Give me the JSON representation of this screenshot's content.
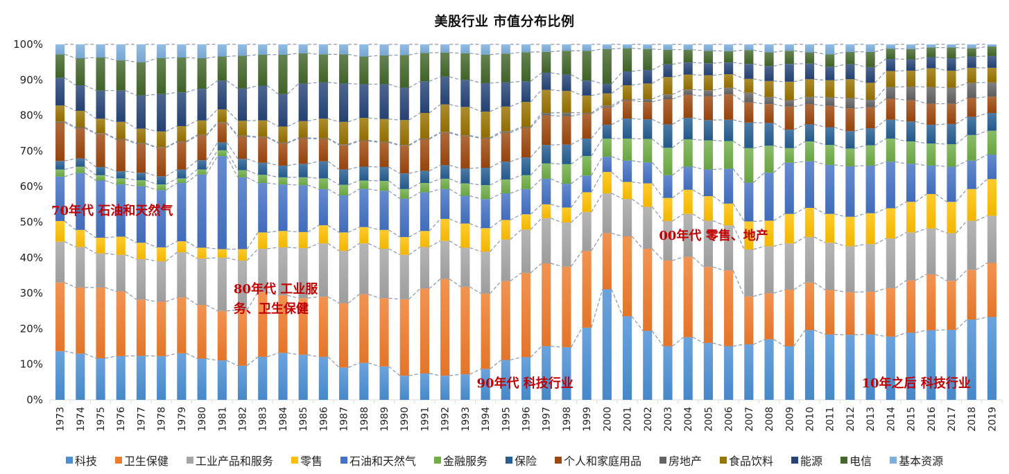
{
  "chart_data": {
    "type": "bar",
    "stacked": true,
    "percent": true,
    "title": "美股行业 市值分布比例",
    "xlabel": "",
    "ylabel": "",
    "ylim": [
      0,
      100
    ],
    "yticks": [
      "0%",
      "10%",
      "20%",
      "30%",
      "40%",
      "50%",
      "60%",
      "70%",
      "80%",
      "90%",
      "100%"
    ],
    "legend_position": "bottom",
    "categories": [
      "1973",
      "1974",
      "1975",
      "1976",
      "1977",
      "1978",
      "1979",
      "1980",
      "1981",
      "1982",
      "1983",
      "1984",
      "1985",
      "1986",
      "1987",
      "1988",
      "1989",
      "1990",
      "1991",
      "1992",
      "1993",
      "1994",
      "1995",
      "1996",
      "1997",
      "1998",
      "1999",
      "2000",
      "2001",
      "2002",
      "2003",
      "2004",
      "2005",
      "2006",
      "2007",
      "2008",
      "2009",
      "2010",
      "2011",
      "2012",
      "2013",
      "2014",
      "2015",
      "2016",
      "2017",
      "2018",
      "2019"
    ],
    "series": [
      {
        "name": "科技",
        "color": "#4a8fd4",
        "values": [
          13.7,
          13.0,
          11.7,
          12.3,
          12.4,
          12.3,
          13.1,
          11.6,
          11.1,
          9.6,
          12.1,
          13.2,
          12.7,
          12.1,
          9.1,
          10.4,
          9.4,
          6.8,
          7.4,
          6.8,
          7.2,
          8.7,
          11.2,
          12.0,
          15.1,
          14.8,
          20.3,
          31.1,
          23.5,
          19.4,
          15.1,
          17.6,
          16.0,
          15.1,
          15.6,
          17.0,
          15.1,
          19.6,
          18.4,
          18.3,
          18.4,
          17.8,
          18.9,
          19.6,
          19.7,
          22.6,
          23.3
        ]
      },
      {
        "name": "卫生保健",
        "color": "#ef7b2b",
        "values": [
          19.3,
          18.6,
          19.9,
          18.2,
          15.8,
          15.3,
          15.7,
          15.1,
          13.9,
          15.7,
          18.2,
          16.2,
          15.9,
          16.9,
          18.1,
          19.3,
          19.2,
          21.5,
          23.9,
          27.2,
          24.6,
          21.2,
          22.2,
          23.7,
          23.3,
          22.7,
          21.6,
          15.8,
          22.5,
          23.1,
          24.1,
          22.6,
          21.4,
          21.3,
          13.5,
          13.0,
          15.9,
          13.4,
          12.5,
          12.0,
          12.0,
          13.6,
          14.7,
          15.7,
          13.8,
          14.0,
          15.2
        ]
      },
      {
        "name": "工业产品和服务",
        "color": "#a5a5a5",
        "values": [
          11.5,
          11.4,
          9.6,
          10.3,
          11.4,
          11.4,
          12.7,
          13.1,
          15.0,
          13.9,
          12.2,
          13.5,
          14.1,
          15.0,
          14.7,
          14.3,
          13.9,
          12.5,
          11.7,
          10.7,
          11.0,
          11.8,
          11.7,
          12.2,
          12.7,
          12.4,
          10.9,
          11.2,
          10.5,
          11.8,
          11.1,
          12.1,
          13.0,
          12.7,
          13.2,
          13.2,
          13.0,
          12.8,
          13.3,
          12.9,
          13.4,
          14.0,
          13.5,
          12.9,
          13.4,
          13.8,
          13.3
        ]
      },
      {
        "name": "零售",
        "color": "#ffc000",
        "values": [
          5.8,
          4.8,
          4.4,
          5.1,
          4.6,
          3.9,
          3.1,
          3.0,
          2.4,
          3.2,
          4.6,
          4.6,
          4.5,
          5.1,
          5.2,
          4.6,
          5.3,
          5.0,
          4.5,
          6.2,
          6.8,
          6.6,
          5.5,
          4.3,
          3.9,
          4.2,
          5.6,
          6.0,
          4.8,
          6.6,
          6.5,
          6.8,
          6.9,
          6.1,
          7.9,
          7.2,
          8.3,
          8.2,
          8.1,
          8.3,
          8.7,
          8.5,
          8.6,
          9.7,
          8.8,
          8.9,
          10.3
        ]
      },
      {
        "name": "石油和天然气",
        "color": "#4472c4",
        "values": [
          12.5,
          16.0,
          16.1,
          14.7,
          15.9,
          16.1,
          16.4,
          20.6,
          26.2,
          20.2,
          13.9,
          13.1,
          13.2,
          10.2,
          10.4,
          10.7,
          11.0,
          10.8,
          10.9,
          8.4,
          7.8,
          8.2,
          7.5,
          7.1,
          7.2,
          6.7,
          4.7,
          4.3,
          6.0,
          5.9,
          6.4,
          6.5,
          7.5,
          9.8,
          10.9,
          13.5,
          14.4,
          13.1,
          13.8,
          14.2,
          13.4,
          13.1,
          10.7,
          8.0,
          9.9,
          8.0,
          6.9
        ]
      },
      {
        "name": "金融服务",
        "color": "#70ad47",
        "values": [
          2.0,
          1.8,
          1.5,
          1.7,
          1.7,
          1.6,
          1.3,
          1.4,
          1.6,
          2.0,
          2.3,
          2.0,
          2.2,
          3.0,
          3.0,
          2.4,
          2.8,
          2.7,
          2.6,
          2.9,
          3.5,
          3.9,
          3.9,
          3.9,
          4.3,
          5.5,
          5.5,
          5.1,
          6.2,
          6.6,
          7.7,
          7.7,
          8.2,
          7.8,
          9.7,
          7.6,
          4.1,
          5.6,
          5.6,
          5.0,
          5.7,
          6.5,
          6.3,
          6.2,
          6.3,
          7.2,
          6.7
        ]
      },
      {
        "name": "保险",
        "color": "#255e91",
        "values": [
          2.4,
          2.3,
          2.3,
          2.0,
          2.1,
          2.3,
          2.5,
          2.6,
          2.2,
          3.2,
          3.4,
          3.3,
          3.8,
          4.8,
          4.3,
          3.9,
          3.9,
          4.4,
          3.4,
          3.8,
          4.2,
          4.9,
          5.0,
          5.0,
          5.2,
          5.5,
          4.9,
          3.9,
          5.6,
          5.5,
          6.6,
          6.0,
          5.7,
          6.0,
          7.2,
          6.4,
          5.2,
          4.8,
          5.0,
          4.9,
          4.8,
          5.3,
          5.6,
          5.3,
          5.7,
          5.1,
          5.0
        ]
      },
      {
        "name": "个人和家庭用品",
        "color": "#9e480e",
        "values": [
          10.8,
          8.5,
          9.3,
          8.9,
          8.1,
          8.0,
          7.7,
          6.9,
          5.5,
          6.3,
          7.1,
          6.3,
          7.1,
          6.3,
          6.9,
          7.2,
          6.9,
          7.8,
          8.9,
          9.1,
          9.1,
          8.2,
          8.1,
          8.3,
          8.3,
          8.0,
          6.9,
          4.9,
          5.1,
          4.9,
          7.1,
          6.5,
          6.7,
          7.1,
          5.7,
          5.3,
          6.5,
          5.6,
          6.0,
          6.4,
          5.9,
          5.9,
          6.0,
          5.9,
          5.7,
          5.3,
          4.6
        ]
      },
      {
        "name": "房地产",
        "color": "#636363",
        "values": [
          0.3,
          0.3,
          0.2,
          0.2,
          0.2,
          0.2,
          0.2,
          0.2,
          0.2,
          0.2,
          0.2,
          0.2,
          0.2,
          0.2,
          0.2,
          0.2,
          0.2,
          0.2,
          0.2,
          0.2,
          0.2,
          0.2,
          0.4,
          0.3,
          0.7,
          1.0,
          0.3,
          0.5,
          0.3,
          0.8,
          1.3,
          1.5,
          1.7,
          1.9,
          2.7,
          2.0,
          1.8,
          2.1,
          2.4,
          2.9,
          2.1,
          3.3,
          3.8,
          4.7,
          4.5,
          4.3,
          4.0
        ]
      },
      {
        "name": "食品饮料",
        "color": "#997300",
        "values": [
          4.5,
          4.6,
          4.1,
          4.8,
          4.1,
          4.4,
          4.3,
          4.1,
          3.6,
          4.2,
          4.6,
          4.5,
          4.7,
          5.5,
          6.3,
          6.3,
          6.4,
          7.0,
          7.2,
          7.8,
          8.0,
          7.4,
          7.0,
          7.0,
          6.5,
          6.1,
          4.9,
          3.4,
          4.0,
          4.4,
          4.9,
          4.2,
          4.2,
          3.8,
          3.9,
          4.5,
          5.2,
          5.0,
          4.8,
          5.3,
          4.8,
          4.5,
          4.5,
          5.3,
          4.8,
          4.2,
          4.1
        ]
      },
      {
        "name": "能源",
        "color": "#264478",
        "values": [
          7.8,
          7.2,
          7.9,
          8.8,
          9.3,
          10.5,
          9.5,
          8.9,
          8.1,
          9.1,
          9.8,
          9.1,
          10.6,
          10.2,
          10.8,
          9.5,
          9.8,
          9.1,
          8.9,
          7.8,
          7.6,
          8.0,
          6.8,
          5.8,
          4.8,
          4.6,
          4.2,
          2.7,
          3.9,
          3.8,
          3.6,
          3.4,
          3.4,
          3.3,
          4.2,
          4.2,
          5.0,
          4.4,
          3.8,
          4.2,
          4.4,
          3.4,
          3.2,
          3.1,
          3.5,
          3.2,
          3.3
        ]
      },
      {
        "name": "电信",
        "color": "#43682b",
        "values": [
          6.6,
          7.6,
          9.3,
          8.5,
          9.4,
          10.1,
          9.8,
          8.6,
          6.8,
          9.2,
          8.7,
          11.1,
          8.5,
          7.9,
          8.2,
          7.8,
          8.1,
          9.2,
          8.0,
          6.8,
          7.5,
          8.0,
          8.1,
          8.2,
          5.9,
          6.7,
          8.4,
          9.8,
          6.5,
          5.9,
          4.1,
          3.6,
          3.5,
          3.2,
          3.9,
          3.9,
          3.7,
          3.2,
          3.5,
          3.5,
          4.3,
          2.9,
          2.9,
          2.7,
          3.0,
          2.3,
          2.7
        ]
      },
      {
        "name": "基本资源",
        "color": "#7cafdd",
        "values": [
          2.8,
          3.9,
          3.7,
          4.5,
          5.0,
          3.9,
          3.7,
          3.9,
          3.4,
          3.2,
          2.9,
          2.9,
          2.5,
          2.8,
          2.8,
          3.4,
          3.1,
          3.0,
          2.4,
          2.3,
          2.5,
          2.9,
          2.6,
          2.2,
          2.1,
          1.8,
          1.8,
          1.3,
          1.1,
          1.3,
          1.5,
          1.5,
          1.8,
          1.9,
          1.6,
          2.2,
          1.8,
          2.2,
          2.8,
          2.1,
          2.1,
          1.2,
          1.3,
          0.9,
          0.9,
          1.1,
          0.6
        ]
      }
    ],
    "annotations": [
      {
        "text": "70年代 石油和天然气",
        "year": "1973",
        "y": 52
      },
      {
        "text": "80年代 工业服",
        "year": "1982",
        "y": 30
      },
      {
        "text": "务、卫生保健",
        "year": "1982",
        "y": 24.5
      },
      {
        "text": "90年代  科技行业",
        "year": "1994",
        "y": 3.5
      },
      {
        "text": "00年代  零售、地产",
        "year": "2003",
        "y": 45
      },
      {
        "text": "10年之后  科技行业",
        "year": "2013",
        "y": 3.5
      }
    ],
    "connector_lines": "dashed"
  }
}
